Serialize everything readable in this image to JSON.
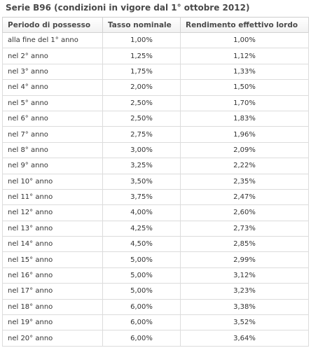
{
  "title": "Serie B96 (condizioni in vigore dal 1° ottobre 2012)",
  "columns": [
    "Periodo di possesso",
    "Tasso nominale",
    "Rendimento effettivo lordo"
  ],
  "rows": [
    {
      "period": "alla fine del 1° anno",
      "nominal": "1,00%",
      "effective": "1,00%"
    },
    {
      "period": "nel 2° anno",
      "nominal": "1,25%",
      "effective": "1,12%"
    },
    {
      "period": "nel 3° anno",
      "nominal": "1,75%",
      "effective": "1,33%"
    },
    {
      "period": "nel 4° anno",
      "nominal": "2,00%",
      "effective": "1,50%"
    },
    {
      "period": "nel 5° anno",
      "nominal": "2,50%",
      "effective": "1,70%"
    },
    {
      "period": "nel 6° anno",
      "nominal": "2,50%",
      "effective": "1,83%"
    },
    {
      "period": "nel 7° anno",
      "nominal": "2,75%",
      "effective": "1,96%"
    },
    {
      "period": "nel 8° anno",
      "nominal": "3,00%",
      "effective": "2,09%"
    },
    {
      "period": "nel 9° anno",
      "nominal": "3,25%",
      "effective": "2,22%"
    },
    {
      "period": "nel 10° anno",
      "nominal": "3,50%",
      "effective": "2,35%"
    },
    {
      "period": "nel 11° anno",
      "nominal": "3,75%",
      "effective": "2,47%"
    },
    {
      "period": "nel 12° anno",
      "nominal": "4,00%",
      "effective": "2,60%"
    },
    {
      "period": "nel 13° anno",
      "nominal": "4,25%",
      "effective": "2,73%"
    },
    {
      "period": "nel 14° anno",
      "nominal": "4,50%",
      "effective": "2,85%"
    },
    {
      "period": "nel 15° anno",
      "nominal": "5,00%",
      "effective": "2,99%"
    },
    {
      "period": "nel 16° anno",
      "nominal": "5,00%",
      "effective": "3,12%"
    },
    {
      "period": "nel 17° anno",
      "nominal": "5,00%",
      "effective": "3,23%"
    },
    {
      "period": "nel 18° anno",
      "nominal": "6,00%",
      "effective": "3,38%"
    },
    {
      "period": "nel 19° anno",
      "nominal": "6,00%",
      "effective": "3,52%"
    },
    {
      "period": "nel 20° anno",
      "nominal": "6,00%",
      "effective": "3,64%"
    }
  ]
}
